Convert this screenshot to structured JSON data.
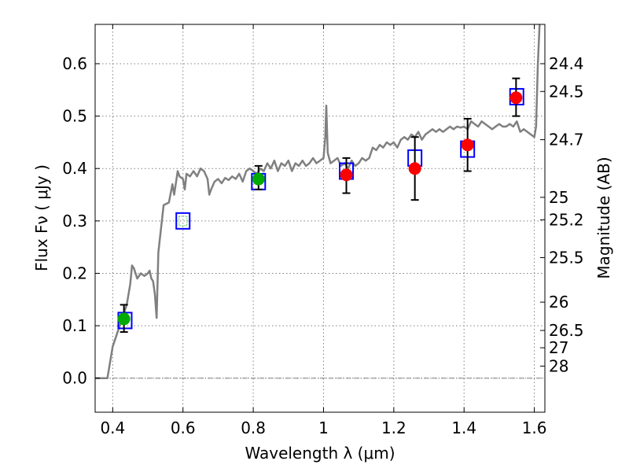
{
  "chart_data": {
    "type": "scatter",
    "xlabel": "Wavelength  λ (μm)",
    "ylabel": "Flux  Fν  ( μJy )",
    "y2label": "Magnitude (AB)",
    "xlim": [
      0.35,
      1.63
    ],
    "ylim": [
      -0.065,
      0.675
    ],
    "grid": true,
    "x_ticks": [
      0.4,
      0.6,
      0.8,
      1.0,
      1.2,
      1.4,
      1.6
    ],
    "x_tick_labels": [
      "0.4",
      "0.6",
      "0.8",
      "1",
      "1.2",
      "1.4",
      "1.6"
    ],
    "y_ticks": [
      0.0,
      0.1,
      0.2,
      0.3,
      0.4,
      0.5,
      0.6
    ],
    "y_tick_labels": [
      "0.0",
      "0.1",
      "0.2",
      "0.3",
      "0.4",
      "0.5",
      "0.6"
    ],
    "y2_ticks": [
      {
        "label": "24.4",
        "flux": 0.6
      },
      {
        "label": "24.5",
        "flux": 0.547
      },
      {
        "label": "24.7",
        "flux": 0.455
      },
      {
        "label": "25",
        "flux": 0.345
      },
      {
        "label": "25.2",
        "flux": 0.302
      },
      {
        "label": "25.5",
        "flux": 0.23
      },
      {
        "label": "26",
        "flux": 0.145
      },
      {
        "label": "26.5",
        "flux": 0.091
      },
      {
        "label": "27",
        "flux": 0.058
      },
      {
        "label": "28",
        "flux": 0.023
      }
    ],
    "colors": {
      "model": "#808080",
      "model_points": "#0000ff",
      "observed_red": "#ff0000",
      "observed_green": "#00aa00",
      "grid": "#808080",
      "zero_line": "#808080"
    },
    "series": [
      {
        "kind": "line",
        "points": [
          [
            0.35,
            0.0
          ],
          [
            0.385,
            0.0
          ],
          [
            0.4,
            0.06
          ],
          [
            0.415,
            0.09
          ],
          [
            0.43,
            0.12
          ],
          [
            0.44,
            0.14
          ],
          [
            0.45,
            0.18
          ],
          [
            0.455,
            0.215
          ],
          [
            0.46,
            0.21
          ],
          [
            0.47,
            0.19
          ],
          [
            0.48,
            0.2
          ],
          [
            0.49,
            0.195
          ],
          [
            0.5,
            0.2
          ],
          [
            0.505,
            0.205
          ],
          [
            0.51,
            0.19
          ],
          [
            0.515,
            0.185
          ],
          [
            0.52,
            0.16
          ],
          [
            0.525,
            0.115
          ],
          [
            0.53,
            0.24
          ],
          [
            0.545,
            0.33
          ],
          [
            0.56,
            0.335
          ],
          [
            0.57,
            0.37
          ],
          [
            0.575,
            0.35
          ],
          [
            0.585,
            0.395
          ],
          [
            0.59,
            0.385
          ],
          [
            0.6,
            0.38
          ],
          [
            0.605,
            0.36
          ],
          [
            0.61,
            0.39
          ],
          [
            0.62,
            0.385
          ],
          [
            0.63,
            0.395
          ],
          [
            0.64,
            0.385
          ],
          [
            0.65,
            0.4
          ],
          [
            0.66,
            0.395
          ],
          [
            0.67,
            0.38
          ],
          [
            0.675,
            0.35
          ],
          [
            0.68,
            0.36
          ],
          [
            0.69,
            0.375
          ],
          [
            0.7,
            0.38
          ],
          [
            0.71,
            0.372
          ],
          [
            0.72,
            0.382
          ],
          [
            0.73,
            0.378
          ],
          [
            0.74,
            0.385
          ],
          [
            0.75,
            0.38
          ],
          [
            0.76,
            0.39
          ],
          [
            0.77,
            0.375
          ],
          [
            0.78,
            0.395
          ],
          [
            0.79,
            0.4
          ],
          [
            0.8,
            0.395
          ],
          [
            0.81,
            0.39
          ],
          [
            0.82,
            0.4
          ],
          [
            0.83,
            0.395
          ],
          [
            0.84,
            0.41
          ],
          [
            0.85,
            0.4
          ],
          [
            0.86,
            0.415
          ],
          [
            0.87,
            0.395
          ],
          [
            0.88,
            0.41
          ],
          [
            0.89,
            0.405
          ],
          [
            0.9,
            0.415
          ],
          [
            0.91,
            0.395
          ],
          [
            0.92,
            0.41
          ],
          [
            0.93,
            0.405
          ],
          [
            0.94,
            0.415
          ],
          [
            0.95,
            0.405
          ],
          [
            0.96,
            0.41
          ],
          [
            0.97,
            0.42
          ],
          [
            0.98,
            0.41
          ],
          [
            0.99,
            0.415
          ],
          [
            1.0,
            0.42
          ],
          [
            1.005,
            0.46
          ],
          [
            1.008,
            0.52
          ],
          [
            1.012,
            0.43
          ],
          [
            1.02,
            0.41
          ],
          [
            1.03,
            0.415
          ],
          [
            1.04,
            0.42
          ],
          [
            1.05,
            0.405
          ],
          [
            1.06,
            0.41
          ],
          [
            1.07,
            0.4
          ],
          [
            1.08,
            0.415
          ],
          [
            1.09,
            0.405
          ],
          [
            1.1,
            0.41
          ],
          [
            1.11,
            0.42
          ],
          [
            1.12,
            0.415
          ],
          [
            1.13,
            0.42
          ],
          [
            1.14,
            0.44
          ],
          [
            1.15,
            0.435
          ],
          [
            1.16,
            0.445
          ],
          [
            1.17,
            0.44
          ],
          [
            1.18,
            0.45
          ],
          [
            1.19,
            0.445
          ],
          [
            1.2,
            0.45
          ],
          [
            1.21,
            0.44
          ],
          [
            1.22,
            0.455
          ],
          [
            1.23,
            0.46
          ],
          [
            1.24,
            0.455
          ],
          [
            1.25,
            0.465
          ],
          [
            1.26,
            0.46
          ],
          [
            1.27,
            0.47
          ],
          [
            1.28,
            0.455
          ],
          [
            1.29,
            0.465
          ],
          [
            1.3,
            0.47
          ],
          [
            1.31,
            0.475
          ],
          [
            1.32,
            0.47
          ],
          [
            1.33,
            0.475
          ],
          [
            1.34,
            0.47
          ],
          [
            1.35,
            0.475
          ],
          [
            1.36,
            0.48
          ],
          [
            1.37,
            0.475
          ],
          [
            1.38,
            0.48
          ],
          [
            1.39,
            0.478
          ],
          [
            1.4,
            0.48
          ],
          [
            1.41,
            0.475
          ],
          [
            1.42,
            0.49
          ],
          [
            1.43,
            0.485
          ],
          [
            1.44,
            0.48
          ],
          [
            1.45,
            0.49
          ],
          [
            1.46,
            0.485
          ],
          [
            1.47,
            0.48
          ],
          [
            1.48,
            0.475
          ],
          [
            1.49,
            0.48
          ],
          [
            1.5,
            0.485
          ],
          [
            1.51,
            0.48
          ],
          [
            1.52,
            0.48
          ],
          [
            1.53,
            0.485
          ],
          [
            1.54,
            0.48
          ],
          [
            1.55,
            0.49
          ],
          [
            1.56,
            0.47
          ],
          [
            1.57,
            0.475
          ],
          [
            1.58,
            0.47
          ],
          [
            1.59,
            0.465
          ],
          [
            1.6,
            0.46
          ],
          [
            1.605,
            0.48
          ],
          [
            1.61,
            0.6
          ],
          [
            1.615,
            0.68
          ]
        ]
      },
      {
        "kind": "model_points",
        "points": [
          [
            0.435,
            0.11
          ],
          [
            0.6,
            0.3
          ],
          [
            0.815,
            0.375
          ],
          [
            1.065,
            0.395
          ],
          [
            1.26,
            0.42
          ],
          [
            1.41,
            0.437
          ],
          [
            1.55,
            0.537
          ]
        ]
      },
      {
        "kind": "observed",
        "points": [
          {
            "x": 0.432,
            "y": 0.113,
            "err_low": 0.088,
            "err_high": 0.14,
            "color": "green"
          },
          {
            "x": 0.815,
            "y": 0.38,
            "err_low": 0.36,
            "err_high": 0.405,
            "color": "green"
          },
          {
            "x": 1.065,
            "y": 0.388,
            "err_low": 0.353,
            "err_high": 0.42,
            "color": "red"
          },
          {
            "x": 1.26,
            "y": 0.4,
            "err_low": 0.34,
            "err_high": 0.46,
            "color": "red"
          },
          {
            "x": 1.41,
            "y": 0.445,
            "err_low": 0.395,
            "err_high": 0.495,
            "color": "red"
          },
          {
            "x": 1.548,
            "y": 0.535,
            "err_low": 0.5,
            "err_high": 0.572,
            "color": "red"
          }
        ]
      }
    ]
  }
}
